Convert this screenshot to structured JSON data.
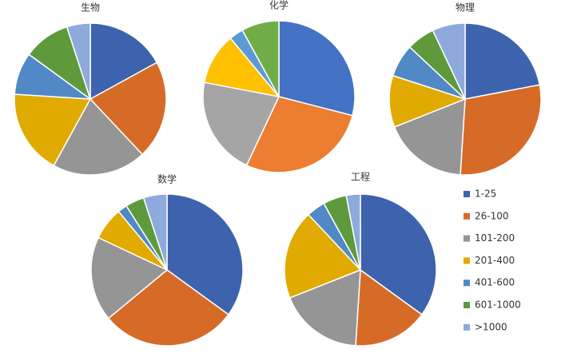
{
  "chart_data": [
    {
      "type": "pie",
      "title": "生物",
      "categories": [
        "1-25",
        "26-100",
        "101-200",
        "201-400",
        "401-600",
        "601-1000",
        ">1000"
      ],
      "values": [
        17,
        21,
        20,
        18,
        9,
        10,
        5
      ],
      "colors": [
        "#3d63ae",
        "#d66b27",
        "#959595",
        "#e0aa00",
        "#5089c6",
        "#5e9a3c",
        "#8ea9db"
      ]
    },
    {
      "type": "pie",
      "title": "化学",
      "categories": [
        "1-25",
        "26-100",
        "101-200",
        "201-400",
        "401-600",
        "601-1000"
      ],
      "values": [
        29,
        28,
        21,
        11,
        3,
        8
      ],
      "colors": [
        "#4472c4",
        "#ed7d31",
        "#a5a5a5",
        "#ffc000",
        "#5b9bd5",
        "#70ad47"
      ]
    },
    {
      "type": "pie",
      "title": "物理",
      "categories": [
        "1-25",
        "26-100",
        "101-200",
        "201-400",
        "401-600",
        "601-1000",
        ">1000"
      ],
      "values": [
        22,
        29,
        18,
        11,
        7,
        6,
        7
      ],
      "colors": [
        "#3d63ae",
        "#d66b27",
        "#959595",
        "#e0aa00",
        "#5089c6",
        "#5e9a3c",
        "#8ea9db"
      ]
    },
    {
      "type": "pie",
      "title": "数学",
      "categories": [
        "1-25",
        "26-100",
        "101-200",
        "201-400",
        "401-600",
        "601-1000",
        ">1000"
      ],
      "values": [
        35,
        29,
        18,
        7,
        2,
        4,
        5
      ],
      "colors": [
        "#3d63ae",
        "#d66b27",
        "#959595",
        "#e0aa00",
        "#5089c6",
        "#5e9a3c",
        "#8ea9db"
      ]
    },
    {
      "type": "pie",
      "title": "工程",
      "categories": [
        "1-25",
        "26-100",
        "101-200",
        "201-400",
        "401-600",
        "601-1000",
        ">1000"
      ],
      "values": [
        35,
        16,
        18,
        19,
        4,
        5,
        3
      ],
      "colors": [
        "#3d63ae",
        "#d66b27",
        "#959595",
        "#e0aa00",
        "#5089c6",
        "#5e9a3c",
        "#8ea9db"
      ]
    }
  ]
}
